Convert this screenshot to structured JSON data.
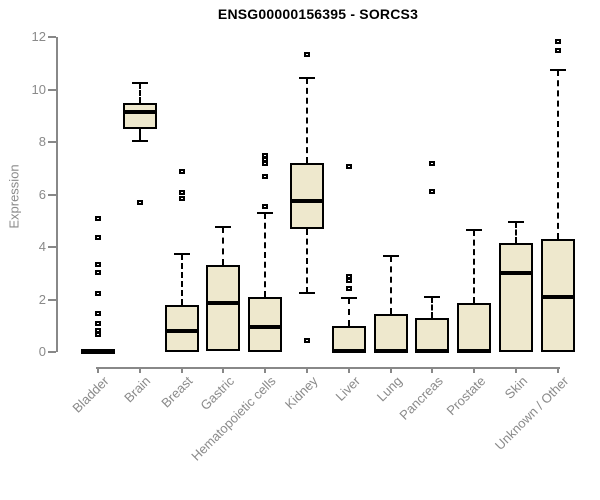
{
  "chart_data": {
    "type": "box",
    "title": "ENSG00000156395 - SORCS3",
    "ylabel": "Expression",
    "xlabel": "",
    "ylim": [
      0,
      12
    ],
    "yticks": [
      0,
      2,
      4,
      6,
      8,
      10,
      12
    ],
    "grid": false,
    "legend": false,
    "categories": [
      "Bladder",
      "Brain",
      "Breast",
      "Gastric",
      "Hematopoietic cells",
      "Kidney",
      "Liver",
      "Lung",
      "Pancreas",
      "Prostate",
      "Skin",
      "Unknown / Other"
    ],
    "groups": [
      {
        "label": "Bladder",
        "whisker_low": 0,
        "q1": 0,
        "median": 0.03,
        "q3": 0.08,
        "whisker_high": 0.08,
        "outliers": [
          0.7,
          0.85,
          1.1,
          1.5,
          2.25,
          3.05,
          3.35,
          4.4,
          5.1
        ]
      },
      {
        "label": "Brain",
        "whisker_low": 8.05,
        "q1": 8.5,
        "median": 9.15,
        "q3": 9.5,
        "whisker_high": 10.25,
        "outliers": [
          5.7
        ]
      },
      {
        "label": "Breast",
        "whisker_low": 0,
        "q1": 0,
        "median": 0.8,
        "q3": 1.8,
        "whisker_high": 3.75,
        "outliers": [
          5.85,
          6.1,
          6.9
        ]
      },
      {
        "label": "Gastric",
        "whisker_low": 0.05,
        "q1": 0.05,
        "median": 1.85,
        "q3": 3.3,
        "whisker_high": 4.75,
        "outliers": []
      },
      {
        "label": "Hematopoietic cells",
        "whisker_low": 0,
        "q1": 0,
        "median": 0.95,
        "q3": 2.1,
        "whisker_high": 5.3,
        "outliers": [
          5.55,
          6.7,
          7.2,
          7.35,
          7.5
        ]
      },
      {
        "label": "Kidney",
        "whisker_low": 2.25,
        "q1": 4.7,
        "median": 5.75,
        "q3": 7.2,
        "whisker_high": 10.45,
        "outliers": [
          0.45,
          11.35
        ]
      },
      {
        "label": "Liver",
        "whisker_low": 0,
        "q1": 0,
        "median": 0.05,
        "q3": 1.0,
        "whisker_high": 2.05,
        "outliers": [
          2.45,
          2.75,
          2.9,
          7.1
        ]
      },
      {
        "label": "Lung",
        "whisker_low": 0,
        "q1": 0,
        "median": 0.05,
        "q3": 1.45,
        "whisker_high": 3.65,
        "outliers": []
      },
      {
        "label": "Pancreas",
        "whisker_low": 0,
        "q1": 0,
        "median": 0.05,
        "q3": 1.3,
        "whisker_high": 2.1,
        "outliers": [
          6.15,
          7.2
        ]
      },
      {
        "label": "Prostate",
        "whisker_low": 0,
        "q1": 0,
        "median": 0.05,
        "q3": 1.85,
        "whisker_high": 4.65,
        "outliers": []
      },
      {
        "label": "Skin",
        "whisker_low": 0,
        "q1": 0,
        "median": 3.0,
        "q3": 4.15,
        "whisker_high": 4.95,
        "outliers": []
      },
      {
        "label": "Unknown / Other",
        "whisker_low": 0,
        "q1": 0,
        "median": 2.1,
        "q3": 4.3,
        "whisker_high": 10.75,
        "outliers": [
          11.5,
          11.85
        ]
      }
    ],
    "colors": {
      "box_fill": "#EEE8CD",
      "box_border": "#000000",
      "axis": "#888888",
      "tick_text": "#8a8a8a",
      "title_text": "#000000",
      "background": "#ffffff"
    }
  }
}
